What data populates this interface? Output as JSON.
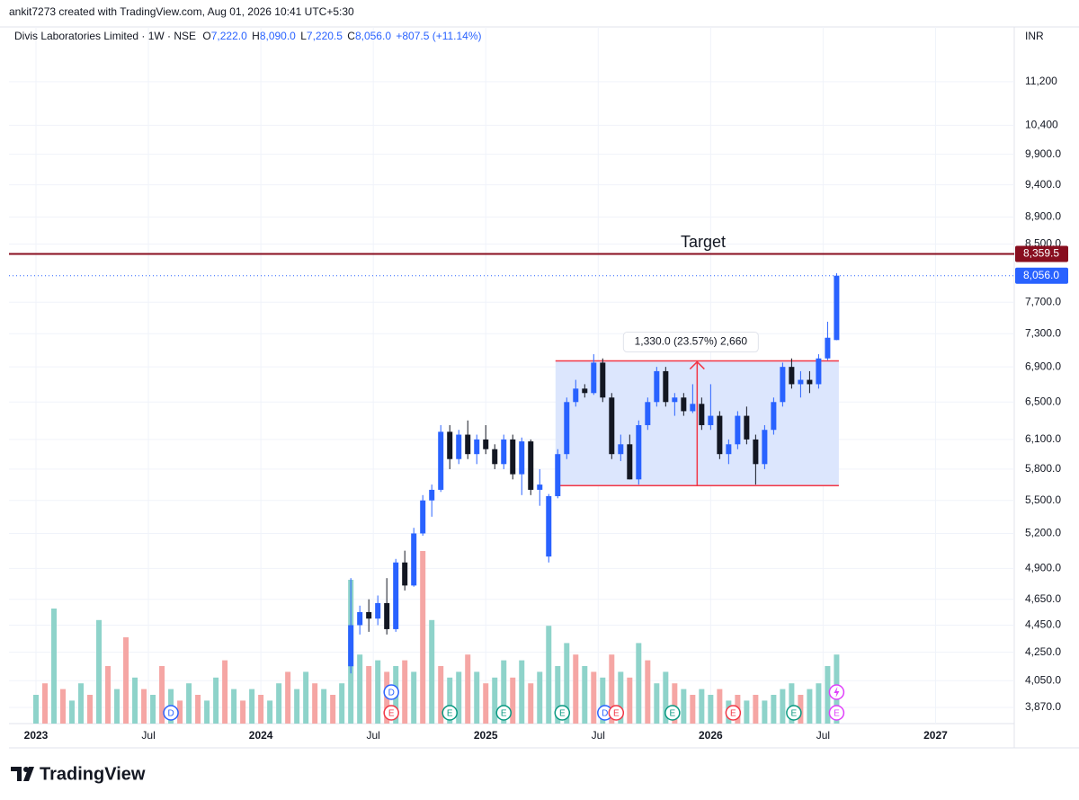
{
  "header": {
    "text": "ankit7273 created with TradingView.com, Aug 01, 2026 10:41 UTC+5:30"
  },
  "footer": {
    "brand": "TradingView"
  },
  "chart_data": {
    "type": "candlestick",
    "title": "Divis Laboratories Limited · 1W · NSE",
    "ohlc_legend": [
      {
        "key": "O",
        "value": "7,222.0"
      },
      {
        "key": "H",
        "value": "8,090.0"
      },
      {
        "key": "L",
        "value": "7,220.5"
      },
      {
        "key": "C",
        "value": "8,056.0"
      }
    ],
    "change": "+807.5 (+11.14%)",
    "currency": "INR",
    "log_scale": true,
    "grid": true,
    "up_color": "#2962ff",
    "down_color": "#131722",
    "xlim": [
      2022.88,
      2027.35
    ],
    "xticks": [
      2023,
      {
        "value": 2023.5,
        "label": "Jul"
      },
      2024,
      {
        "value": 2024.5,
        "label": "Jul"
      },
      2025,
      {
        "value": 2025.5,
        "label": "Jul"
      },
      2026,
      {
        "value": 2026.5,
        "label": "Jul"
      },
      2027
    ],
    "ylim": [
      3765,
      12290
    ],
    "yticks": [
      {
        "value": 3870,
        "label": "3,870.0"
      },
      {
        "value": 4050,
        "label": "4,050.0"
      },
      {
        "value": 4250,
        "label": "4,250.0"
      },
      {
        "value": 4450,
        "label": "4,450.0"
      },
      {
        "value": 4650,
        "label": "4,650.0"
      },
      {
        "value": 4900,
        "label": "4,900.0"
      },
      {
        "value": 5200,
        "label": "5,200.0"
      },
      {
        "value": 5500,
        "label": "5,500.0"
      },
      {
        "value": 5800,
        "label": "5,800.0"
      },
      {
        "value": 6100,
        "label": "6,100.0"
      },
      {
        "value": 6500,
        "label": "6,500.0"
      },
      {
        "value": 6900,
        "label": "6,900.0"
      },
      {
        "value": 7300,
        "label": "7,300.0"
      },
      {
        "value": 7700,
        "label": "7,700.0"
      },
      {
        "value": 8500,
        "label": "8,500.0"
      },
      {
        "value": 8900,
        "label": "8,900.0"
      },
      {
        "value": 9400,
        "label": "9,400.0"
      },
      {
        "value": 9900,
        "label": "9,900.0"
      },
      {
        "value": 10400,
        "label": "10,400"
      },
      {
        "value": 11200,
        "label": "11,200"
      }
    ],
    "x": [
      2024.4,
      2024.44,
      2024.48,
      2024.52,
      2024.56,
      2024.6,
      2024.64,
      2024.68,
      2024.72,
      2024.76,
      2024.8,
      2024.84,
      2024.88,
      2024.92,
      2024.96,
      2025.0,
      2025.04,
      2025.08,
      2025.12,
      2025.16,
      2025.2,
      2025.24,
      2025.28,
      2025.32,
      2025.36,
      2025.4,
      2025.44,
      2025.48,
      2025.52,
      2025.56,
      2025.6,
      2025.64,
      2025.68,
      2025.72,
      2025.76,
      2025.8,
      2025.84,
      2025.88,
      2025.92,
      2025.96,
      2026.0,
      2026.04,
      2026.08,
      2026.12,
      2026.16,
      2026.2,
      2026.24,
      2026.28,
      2026.32,
      2026.36,
      2026.4,
      2026.44,
      2026.48,
      2026.52,
      2026.56
    ],
    "open": [
      4150,
      4450,
      4550,
      4500,
      4620,
      4420,
      4950,
      4760,
      5200,
      5500,
      5600,
      6180,
      5900,
      6150,
      5950,
      6100,
      6000,
      5850,
      6100,
      5750,
      6080,
      5600,
      5000,
      5540,
      5950,
      6500,
      6650,
      6600,
      6950,
      6550,
      5950,
      6050,
      5700,
      6250,
      6500,
      6850,
      6500,
      6550,
      6400,
      6480,
      6250,
      6350,
      5950,
      6050,
      6350,
      6100,
      5850,
      6200,
      6500,
      6900,
      6700,
      6750,
      6700,
      7000,
      7222
    ],
    "high": [
      4820,
      4600,
      4650,
      4680,
      4820,
      4980,
      5050,
      5250,
      5550,
      5650,
      6250,
      6250,
      6200,
      6300,
      6150,
      6250,
      6050,
      6150,
      6150,
      6120,
      6100,
      5800,
      5560,
      6000,
      6550,
      6750,
      6700,
      7050,
      7000,
      6600,
      6150,
      6150,
      6300,
      6550,
      6900,
      6900,
      6600,
      6600,
      6700,
      6550,
      6700,
      6400,
      6100,
      6400,
      6450,
      6150,
      6250,
      6550,
      6950,
      7000,
      6850,
      6850,
      7050,
      7450,
      8090
    ],
    "low": [
      4100,
      4380,
      4400,
      4450,
      4380,
      4400,
      4720,
      4750,
      5180,
      5350,
      5580,
      5800,
      5850,
      5900,
      5850,
      5950,
      5800,
      5800,
      5700,
      5550,
      5550,
      5450,
      4950,
      5520,
      5900,
      6450,
      6550,
      6580,
      6500,
      5900,
      5880,
      5700,
      5650,
      6200,
      6450,
      6450,
      6350,
      6350,
      6380,
      6200,
      6200,
      5900,
      5850,
      6000,
      6050,
      5650,
      5800,
      6150,
      6450,
      6650,
      6550,
      6600,
      6650,
      6980,
      7220.5
    ],
    "close": [
      4450,
      4550,
      4500,
      4620,
      4420,
      4950,
      4760,
      5200,
      5500,
      5600,
      6180,
      5900,
      6150,
      5950,
      6100,
      6000,
      5850,
      6100,
      5750,
      6080,
      5600,
      5650,
      5540,
      5950,
      6500,
      6650,
      6600,
      6950,
      6550,
      5950,
      6050,
      5700,
      6250,
      6500,
      6850,
      6500,
      6550,
      6400,
      6480,
      6250,
      6350,
      5950,
      6050,
      6350,
      6100,
      5850,
      6200,
      6500,
      6900,
      6700,
      6750,
      6700,
      7000,
      7250,
      8056
    ],
    "volume": {
      "up_color": "#8ed3ca",
      "down_color": "#f5a6a4",
      "x": [
        2023.0,
        2023.04,
        2023.08,
        2023.12,
        2023.16,
        2023.2,
        2023.24,
        2023.28,
        2023.32,
        2023.36,
        2023.4,
        2023.44,
        2023.48,
        2023.52,
        2023.56,
        2023.6,
        2023.64,
        2023.68,
        2023.72,
        2023.76,
        2023.8,
        2023.84,
        2023.88,
        2023.92,
        2023.96,
        2024.0,
        2024.04,
        2024.08,
        2024.12,
        2024.16,
        2024.2,
        2024.24,
        2024.28,
        2024.32,
        2024.36,
        2024.4,
        2024.44,
        2024.48,
        2024.52,
        2024.56,
        2024.6,
        2024.64,
        2024.68,
        2024.72,
        2024.76,
        2024.8,
        2024.84,
        2024.88,
        2024.92,
        2024.96,
        2025.0,
        2025.04,
        2025.08,
        2025.12,
        2025.16,
        2025.2,
        2025.24,
        2025.28,
        2025.32,
        2025.36,
        2025.4,
        2025.44,
        2025.48,
        2025.52,
        2025.56,
        2025.6,
        2025.64,
        2025.68,
        2025.72,
        2025.76,
        2025.8,
        2025.84,
        2025.88,
        2025.92,
        2025.96,
        2026.0,
        2026.04,
        2026.08,
        2026.12,
        2026.16,
        2026.2,
        2026.24,
        2026.28,
        2026.32,
        2026.36,
        2026.4,
        2026.44,
        2026.48,
        2026.52,
        2026.56
      ],
      "values": [
        25,
        35,
        100,
        30,
        20,
        35,
        25,
        90,
        50,
        30,
        75,
        40,
        30,
        25,
        50,
        30,
        20,
        35,
        25,
        20,
        40,
        55,
        30,
        20,
        30,
        25,
        20,
        35,
        45,
        30,
        45,
        35,
        30,
        25,
        35,
        125,
        60,
        50,
        55,
        45,
        50,
        55,
        45,
        150,
        90,
        50,
        40,
        45,
        60,
        45,
        35,
        40,
        55,
        40,
        55,
        35,
        45,
        85,
        50,
        70,
        60,
        50,
        45,
        40,
        60,
        45,
        40,
        70,
        55,
        35,
        45,
        35,
        30,
        25,
        30,
        25,
        30,
        20,
        25,
        20,
        25,
        20,
        25,
        30,
        35,
        25,
        30,
        35,
        50,
        60
      ],
      "up": [
        true,
        false,
        true,
        false,
        true,
        true,
        false,
        true,
        false,
        true,
        false,
        true,
        false,
        true,
        false,
        true,
        false,
        true,
        false,
        true,
        true,
        false,
        true,
        false,
        true,
        false,
        true,
        true,
        false,
        true,
        true,
        false,
        true,
        false,
        true,
        true,
        true,
        false,
        true,
        false,
        true,
        false,
        true,
        false,
        true,
        false,
        true,
        true,
        false,
        true,
        false,
        true,
        true,
        false,
        true,
        false,
        true,
        true,
        true,
        true,
        false,
        true,
        false,
        true,
        false,
        true,
        false,
        true,
        false,
        true,
        true,
        false,
        true,
        false,
        true,
        true,
        false,
        true,
        false,
        true,
        false,
        true,
        true,
        true,
        true,
        false,
        true,
        true,
        true,
        true
      ]
    },
    "range_box": {
      "x0": 2025.31,
      "x1": 2026.57,
      "low": 5640,
      "high": 6970,
      "label": "1,330.0 (23.57%) 2,660",
      "color": "#f23645",
      "fill": "#dce6fd"
    },
    "target_line": {
      "value": 8359.5,
      "label": "8,359.5",
      "text": "Target",
      "color": "#880e1f"
    },
    "last_price": {
      "value": 8056,
      "label": "8,056.0",
      "color": "#2962ff"
    },
    "events": [
      {
        "x": 2023.6,
        "label": "D",
        "color": "#2962ff"
      },
      {
        "x": 2024.58,
        "label": "E",
        "color": "#f23645"
      },
      {
        "x": 2024.58,
        "label": "D",
        "color": "#2962ff"
      },
      {
        "x": 2024.84,
        "label": "E",
        "color": "#089981"
      },
      {
        "x": 2025.08,
        "label": "E",
        "color": "#089981"
      },
      {
        "x": 2025.34,
        "label": "E",
        "color": "#089981"
      },
      {
        "x": 2025.53,
        "label": "D",
        "color": "#2962ff"
      },
      {
        "x": 2025.58,
        "label": "E",
        "color": "#f23645"
      },
      {
        "x": 2025.83,
        "label": "E",
        "color": "#089981"
      },
      {
        "x": 2026.1,
        "label": "E",
        "color": "#f23645"
      },
      {
        "x": 2026.37,
        "label": "E",
        "color": "#089981"
      },
      {
        "x": 2026.56,
        "label": "E",
        "color": "#e040fb"
      }
    ]
  }
}
